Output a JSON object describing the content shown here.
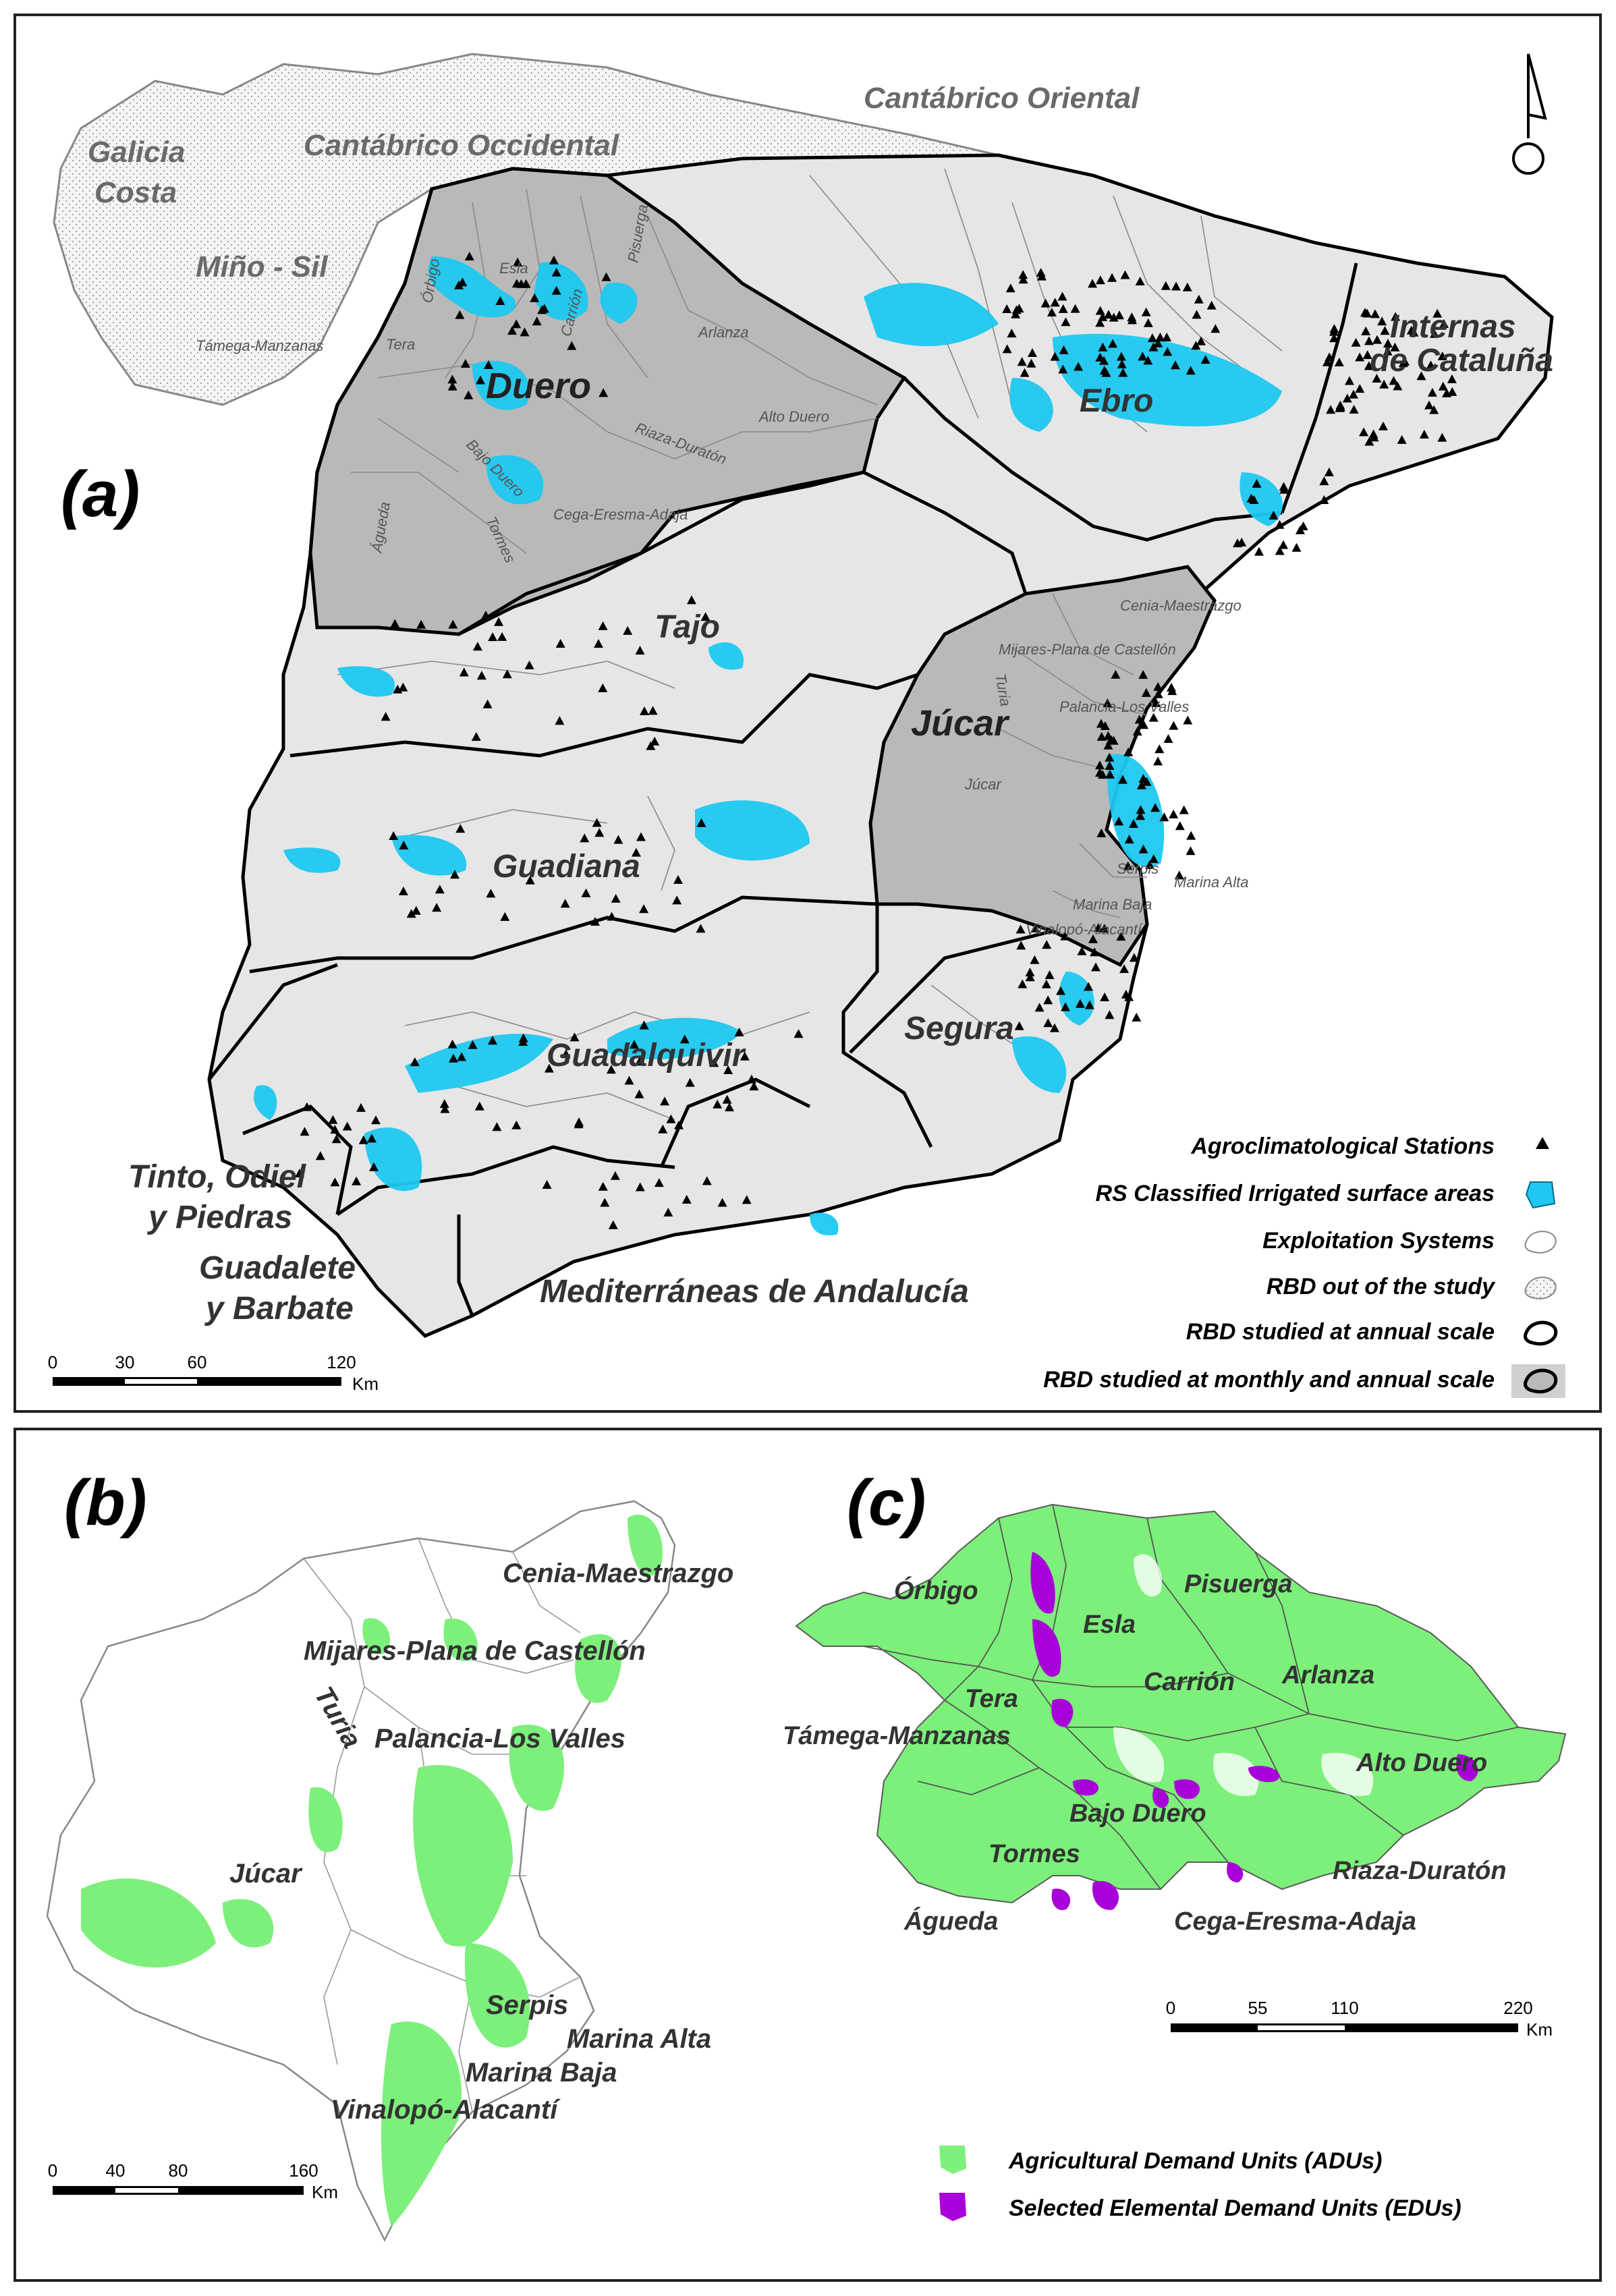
{
  "panel_a": {
    "tag": "(a)",
    "out_of_study_labels": [
      "Cantábrico Oriental",
      "Galicia",
      "Costa",
      "Cantábrico Occidental",
      "Miño - Sil"
    ],
    "rbd_labels": {
      "duero": "Duero",
      "ebro": "Ebro",
      "cataluna_1": "Internas",
      "cataluna_2": "de Cataluña",
      "tajo": "Tajo",
      "jucar": "Júcar",
      "guadiana": "Guadiana",
      "guadalquivir": "Guadalquivir",
      "segura": "Segura",
      "tinto_1": "Tinto, Odiel",
      "tinto_2": "y Piedras",
      "guadalete_1": "Guadalete",
      "guadalete_2": "y Barbate",
      "mediterraneas": "Mediterráneas de Andalucía"
    },
    "system_labels": {
      "orbigo": "Órbigo",
      "esla": "Esla",
      "carrion": "Carrión",
      "pisuerga": "Pisuerga",
      "arlanza": "Arlanza",
      "tamega": "Támega-Manzanas",
      "tera": "Tera",
      "alto_duero": "Alto Duero",
      "riaza": "Riaza-Duratón",
      "bajo_duero": "Bajo Duero",
      "cega": "Cega-Eresma-Adaja",
      "tormes": "Tormes",
      "agueda": "Águeda",
      "cenia": "Cenia-Maestrazgo",
      "mijares": "Mijares-Plana de Castellón",
      "turia": "Turia",
      "palancia": "Palancia-Los Valles",
      "jucar": "Júcar",
      "serpis": "Serpis",
      "marina_alta": "Marina Alta",
      "marina_baja": "Marina Baja",
      "vinalopo": "Vinalopó-Alacantí"
    },
    "legend": [
      {
        "label": "Agroclimatological Stations",
        "symbol": "triangle"
      },
      {
        "label": "RS Classified Irrigated surface areas",
        "symbol": "blue-square"
      },
      {
        "label": "Exploitation Systems",
        "symbol": "thin-outline"
      },
      {
        "label": "RBD out of the study",
        "symbol": "dotted-outline"
      },
      {
        "label": "RBD studied at annual scale",
        "symbol": "thick-outline"
      },
      {
        "label": "RBD studied at monthly and annual scale",
        "symbol": "grey-filled-outline"
      }
    ],
    "scale_ticks": [
      "0",
      "30",
      "60",
      "120"
    ],
    "scale_unit": "Km",
    "colors": {
      "irrigated": "#1ec8f0",
      "monthly_rbd": "#b7b7b7",
      "annual_rbd": "#e6e6e6"
    }
  },
  "panel_b": {
    "tag": "(b)",
    "labels": {
      "cenia": "Cenia-Maestrazgo",
      "mijares": "Mijares-Plana de Castellón",
      "turia": "Turia",
      "palancia": "Palancia-Los Valles",
      "jucar": "Júcar",
      "serpis": "Serpis",
      "marina_alta": "Marina Alta",
      "marina_baja": "Marina Baja",
      "vinalopo": "Vinalopó-Alacantí"
    },
    "scale_ticks": [
      "0",
      "40",
      "80",
      "160"
    ],
    "scale_unit": "Km"
  },
  "panel_c": {
    "tag": "(c)",
    "labels": {
      "orbigo": "Órbigo",
      "esla": "Esla",
      "pisuerga": "Pisuerga",
      "carrion": "Carrión",
      "arlanza": "Arlanza",
      "tera": "Tera",
      "tamega": "Támega-Manzanas",
      "alto_duero": "Alto Duero",
      "bajo_duero": "Bajo Duero",
      "tormes": "Tormes",
      "riaza": "Riaza-Duratón",
      "agueda": "Águeda",
      "cega": "Cega-Eresma-Adaja"
    },
    "scale_ticks": [
      "0",
      "55",
      "110",
      "220"
    ],
    "scale_unit": "Km",
    "colors": {
      "adu": "#7cf07a",
      "edu": "#a800d8"
    }
  },
  "legend_bottom": [
    {
      "label": "Agricultural Demand Units (ADUs)",
      "color": "#7cf07a"
    },
    {
      "label": "Selected Elemental Demand Units (EDUs)",
      "color": "#a800d8"
    }
  ]
}
